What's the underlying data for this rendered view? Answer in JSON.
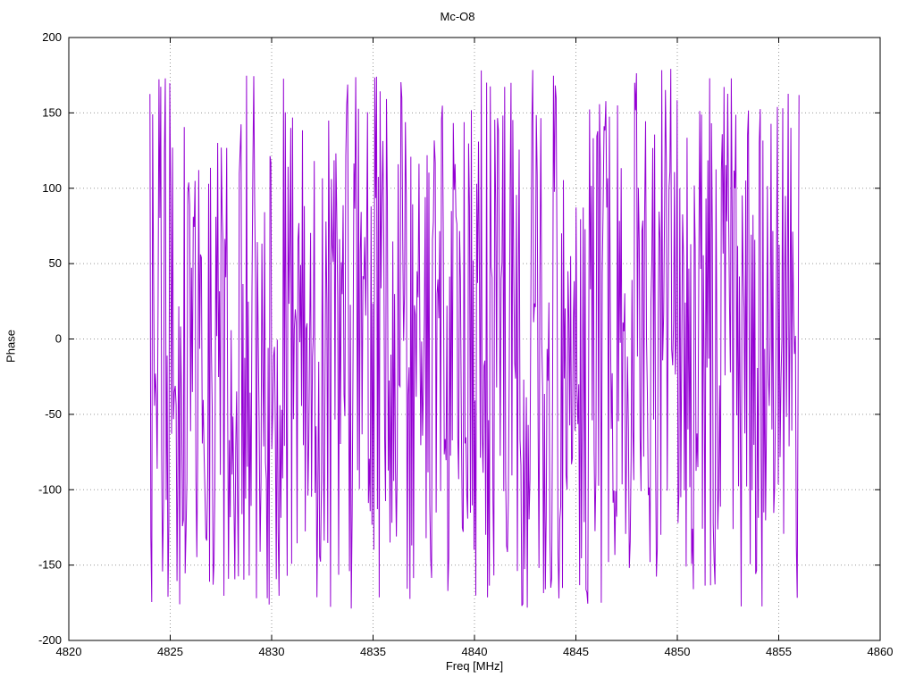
{
  "chart_data": {
    "type": "line",
    "title": "Mc-O8",
    "xlabel": "Freq [MHz]",
    "ylabel": "Phase",
    "xlim": [
      4820,
      4860
    ],
    "ylim": [
      -200,
      200
    ],
    "xticks": [
      4820,
      4825,
      4830,
      4835,
      4840,
      4845,
      4850,
      4855,
      4860
    ],
    "yticks": [
      -200,
      -150,
      -100,
      -50,
      0,
      50,
      100,
      150,
      200
    ],
    "grid": true,
    "grid_style": "dotted",
    "legend": "none",
    "series": [
      {
        "name": "phase",
        "color": "#9400d3",
        "x_start": 4824.0,
        "x_end": 4856.0,
        "n_points": 720,
        "y_distribution": "uniform",
        "y_min": -180,
        "y_max": 180,
        "prng_seed": 987654321
      }
    ]
  },
  "layout_colors": {
    "axis": "#000000",
    "grid": "#999999",
    "background": "#ffffff"
  }
}
